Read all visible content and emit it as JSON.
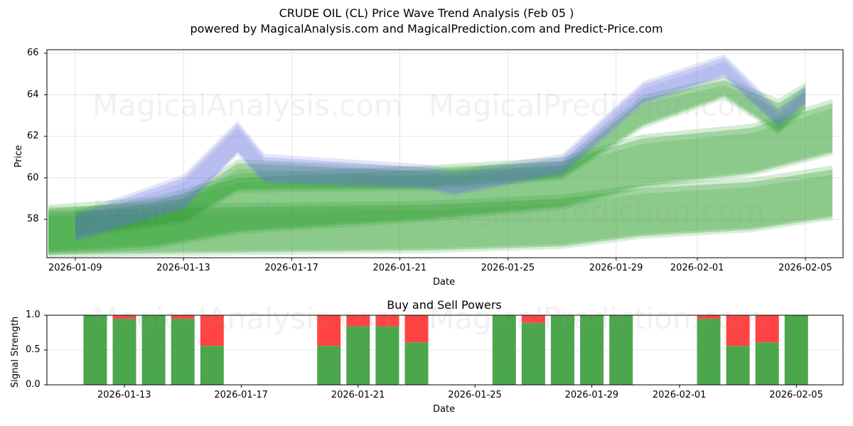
{
  "header": {
    "title": "CRUDE OIL (CL) Price Wave Trend Analysis (Feb 05 )",
    "subtitle": "powered by MagicalAnalysis.com and MagicalPrediction.com and Predict-Price.com"
  },
  "watermarks": [
    "MagicalAnalysis.com",
    "MagicalPrediction.com"
  ],
  "colors": {
    "band_green": "#2ca02c",
    "band_blue": "#6670e0",
    "buy": "#4ca64c",
    "sell": "#ff4444",
    "grid": "#dddddd"
  },
  "chart_data": [
    {
      "type": "area",
      "title": "",
      "xlabel": "Date",
      "ylabel": "Price",
      "ylim": [
        56.2,
        66.2
      ],
      "yticks": [
        "58",
        "60",
        "62",
        "64",
        "66"
      ],
      "xticks": [
        "2026-01-09",
        "2026-01-13",
        "2026-01-17",
        "2026-01-21",
        "2026-01-25",
        "2026-01-29",
        "2026-02-01",
        "2026-02-05"
      ],
      "grid": true,
      "description": "Overlapping translucent price wave bands (green and blue) showing trend ranges",
      "series": [
        {
          "name": "wave-band-low",
          "color": "green",
          "x": [
            "2026-01-08",
            "2026-01-15",
            "2026-01-22",
            "2026-01-27",
            "2026-01-30",
            "2026-02-03",
            "2026-02-06"
          ],
          "upper": [
            58.4,
            58.6,
            58.7,
            59.0,
            59.5,
            59.8,
            60.4
          ],
          "lower": [
            56.3,
            56.4,
            56.5,
            56.7,
            57.2,
            57.5,
            58.1
          ]
        },
        {
          "name": "wave-band-mid",
          "color": "green",
          "x": [
            "2026-01-08",
            "2026-01-12",
            "2026-01-15",
            "2026-01-22",
            "2026-01-27",
            "2026-01-30",
            "2026-02-03",
            "2026-02-06"
          ],
          "upper": [
            58.5,
            58.9,
            60.0,
            60.4,
            60.8,
            61.9,
            62.4,
            63.6
          ],
          "lower": [
            56.4,
            56.7,
            57.4,
            58.0,
            58.6,
            59.6,
            60.2,
            61.2
          ]
        },
        {
          "name": "wave-band-upper",
          "color": "green",
          "x": [
            "2026-01-09",
            "2026-01-13",
            "2026-01-15",
            "2026-01-22",
            "2026-01-27",
            "2026-01-30",
            "2026-02-02",
            "2026-02-04",
            "2026-02-05"
          ],
          "upper": [
            58.3,
            59.0,
            60.7,
            60.3,
            60.6,
            63.8,
            64.7,
            63.6,
            64.4
          ],
          "lower": [
            57.2,
            57.9,
            59.4,
            59.5,
            60.0,
            62.5,
            63.9,
            62.2,
            63.3
          ]
        },
        {
          "name": "wave-band-blue",
          "color": "blue",
          "x": [
            "2026-01-09",
            "2026-01-13",
            "2026-01-15",
            "2026-01-16",
            "2026-01-22",
            "2026-01-23",
            "2026-01-27",
            "2026-01-30",
            "2026-02-02",
            "2026-02-04",
            "2026-02-05"
          ],
          "upper": [
            58.2,
            60.0,
            62.6,
            61.0,
            60.5,
            60.2,
            61.0,
            64.5,
            65.8,
            63.2,
            64.3
          ],
          "lower": [
            57.0,
            58.5,
            61.2,
            59.8,
            59.5,
            59.2,
            60.2,
            63.6,
            64.9,
            62.5,
            63.6
          ]
        }
      ]
    },
    {
      "type": "bar",
      "title": "Buy and Sell Powers",
      "xlabel": "Date",
      "ylabel": "Signal Strength",
      "ylim": [
        0.0,
        1.0
      ],
      "yticks": [
        "0.0",
        "0.5",
        "1.0"
      ],
      "xticks": [
        "2026-01-13",
        "2026-01-17",
        "2026-01-21",
        "2026-01-25",
        "2026-01-29",
        "2026-02-01",
        "2026-02-05"
      ],
      "grid": true,
      "stacked": true,
      "categories": [
        "2026-01-12",
        "2026-01-13",
        "2026-01-14",
        "2026-01-15",
        "2026-01-16",
        "2026-01-20",
        "2026-01-21",
        "2026-01-22",
        "2026-01-23",
        "2026-01-26",
        "2026-01-27",
        "2026-01-28",
        "2026-01-29",
        "2026-01-30",
        "2026-02-02",
        "2026-02-03",
        "2026-02-04",
        "2026-02-05"
      ],
      "series": [
        {
          "name": "Buy",
          "color": "#4ca64c",
          "values": [
            1.0,
            0.95,
            1.0,
            0.95,
            0.56,
            0.56,
            0.84,
            0.84,
            0.61,
            1.0,
            0.89,
            1.0,
            1.0,
            1.0,
            0.95,
            0.56,
            0.61,
            1.0
          ]
        },
        {
          "name": "Sell",
          "color": "#ff4444",
          "values": [
            0.0,
            0.05,
            0.0,
            0.05,
            0.44,
            0.44,
            0.16,
            0.16,
            0.39,
            0.0,
            0.11,
            0.0,
            0.0,
            0.0,
            0.05,
            0.44,
            0.39,
            0.0
          ]
        }
      ]
    }
  ]
}
